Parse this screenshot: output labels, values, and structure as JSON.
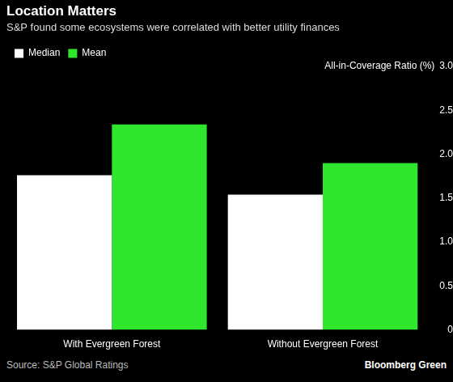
{
  "chart_data": {
    "type": "bar",
    "title": "Location Matters",
    "subtitle": "S&P found some ecosystems were correlated with better utility finances",
    "y_label": "All-in-Coverage Ratio (%)",
    "source": "Source: S&P Global Ratings",
    "credit": "Bloomberg Green",
    "categories": [
      "With Evergreen Forest",
      "Without Evergreen Forest"
    ],
    "series": [
      {
        "name": "Median",
        "color": "#ffffff",
        "values": [
          1.76,
          1.54
        ]
      },
      {
        "name": "Mean",
        "color": "#2ee62e",
        "values": [
          2.34,
          1.9
        ]
      }
    ],
    "ylim": [
      0,
      3
    ],
    "yticks": [
      0,
      0.5,
      {
        "value": 1,
        "label": "1.0"
      },
      1.5,
      {
        "value": 2,
        "label": "2.0"
      },
      2.5,
      {
        "value": 3,
        "label": "3.0"
      }
    ],
    "grid": false,
    "legend": "top-left"
  }
}
